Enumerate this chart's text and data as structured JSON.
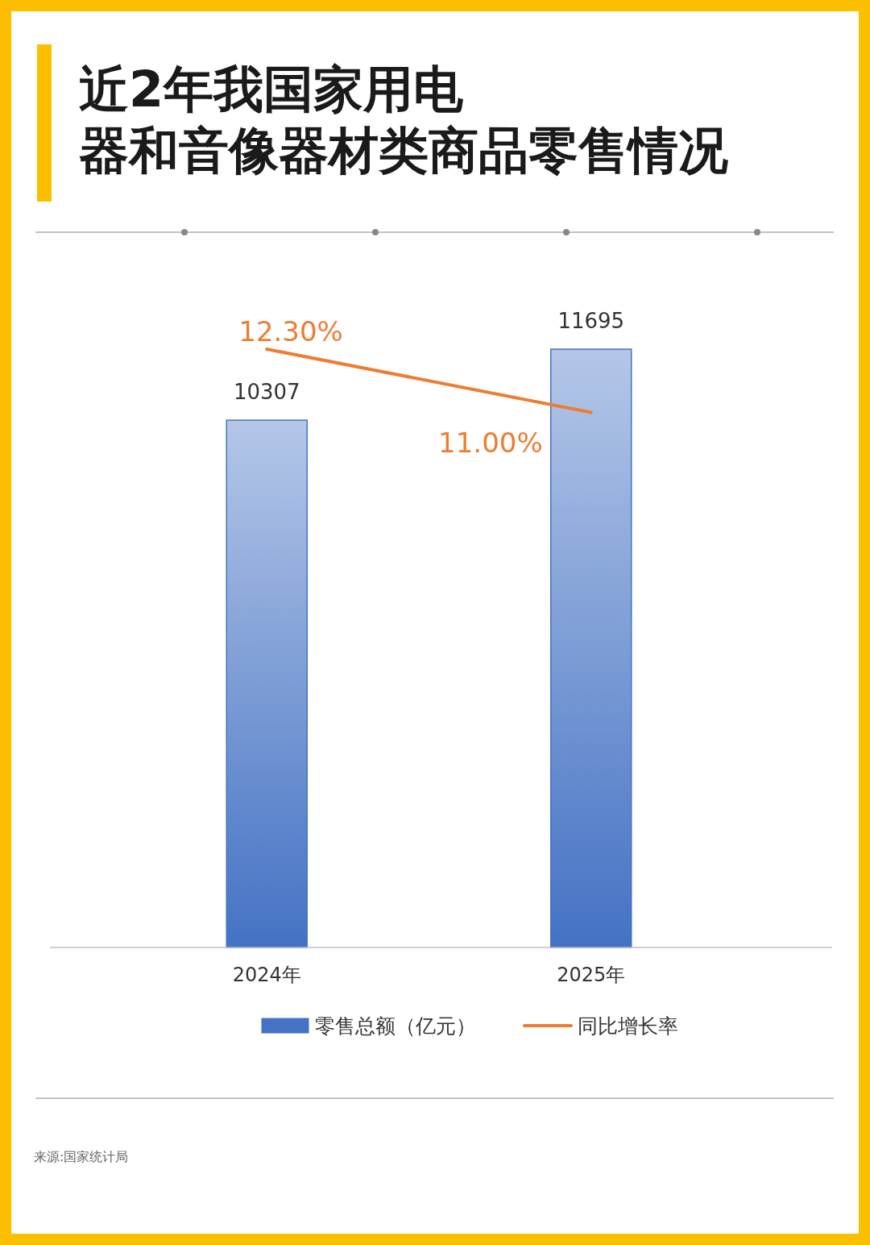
{
  "chart_data": {
    "type": "bar",
    "title": "近2年我国家用电器和音像器材类商品零售情况",
    "categories": [
      "2024年",
      "2025年"
    ],
    "tick_labels": "x",
    "legend": "bottom",
    "annotations": [
      "来源:国家统计局"
    ],
    "series": [
      {
        "name": "零售总额（亿元）",
        "color": "#4472c4",
        "values": [
          10307,
          11695
        ],
        "value_labels": [
          "10307",
          "11695"
        ]
      },
      {
        "name": "同比增长率",
        "type": "line",
        "axis": "y2",
        "color": "#ed7d31",
        "values": [
          12.3,
          11.0
        ],
        "value_labels": [
          "12.30%",
          "11.00%"
        ]
      }
    ]
  }
}
